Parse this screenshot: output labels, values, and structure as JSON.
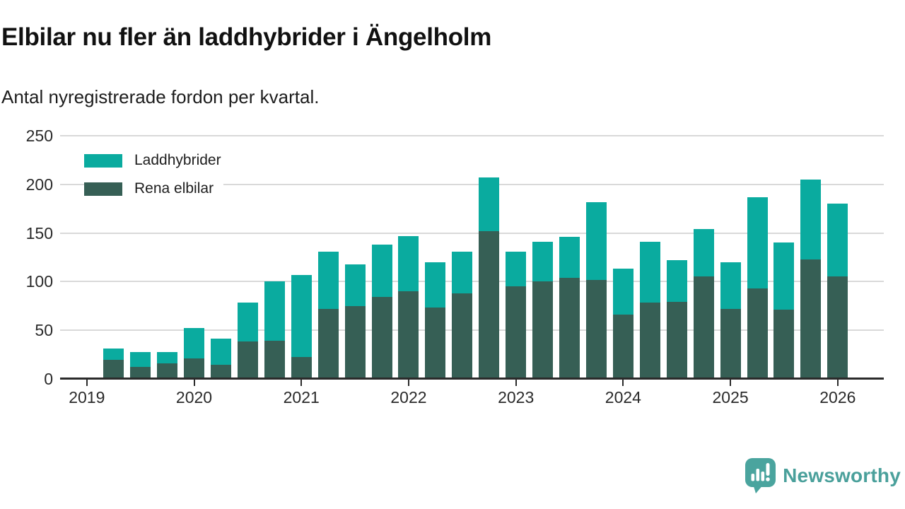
{
  "header": {
    "title": "Elbilar nu fler än laddhybrider i Ängelholm",
    "subtitle": "Antal nyregistrerade fordon per kvartal."
  },
  "legend": {
    "items": [
      {
        "label": "Laddhybrider",
        "color": "#0aab9f"
      },
      {
        "label": "Rena elbilar",
        "color": "#365f55"
      }
    ]
  },
  "footer": {
    "brand": "Newsworthy",
    "logo_icon": "speech-bubble-bar-chart-icon",
    "brand_color": "#4AA09B"
  },
  "colors": {
    "laddhybrider": "#0aab9f",
    "rena_elbilar": "#365f55",
    "gridline": "#d9d9d9",
    "axis": "#2b2b2b",
    "text": "#2a2a2a"
  },
  "chart_data": {
    "type": "bar",
    "stacked": true,
    "title": "Elbilar nu fler än laddhybrider i Ängelholm",
    "subtitle": "Antal nyregistrerade fordon per kvartal.",
    "xlabel": "",
    "ylabel": "",
    "ylim": [
      0,
      250
    ],
    "y_ticks": [
      0,
      50,
      100,
      150,
      200,
      250
    ],
    "x_tick_labels": [
      "2019",
      "2020",
      "2021",
      "2022",
      "2023",
      "2024",
      "2025",
      "2026"
    ],
    "grid": true,
    "legend_position": "top-left-inside",
    "categories": [
      "2019 Q2",
      "2019 Q3",
      "2019 Q4",
      "2020 Q1",
      "2020 Q2",
      "2020 Q3",
      "2020 Q4",
      "2021 Q1",
      "2021 Q2",
      "2021 Q3",
      "2021 Q4",
      "2022 Q1",
      "2022 Q2",
      "2022 Q3",
      "2022 Q4",
      "2023 Q1",
      "2023 Q2",
      "2023 Q3",
      "2023 Q4",
      "2024 Q1",
      "2024 Q2",
      "2024 Q3",
      "2024 Q4",
      "2025 Q1",
      "2025 Q2",
      "2025 Q3",
      "2025 Q4",
      "2026 Q1"
    ],
    "series": [
      {
        "name": "Rena elbilar",
        "color": "#365f55",
        "values": [
          19,
          12,
          16,
          21,
          14,
          38,
          39,
          22,
          72,
          75,
          84,
          90,
          73,
          88,
          152,
          95,
          100,
          104,
          102,
          66,
          78,
          79,
          105,
          72,
          93,
          71,
          123,
          105
        ]
      },
      {
        "name": "Laddhybrider",
        "color": "#0aab9f",
        "values": [
          12,
          15,
          11,
          31,
          27,
          40,
          61,
          85,
          59,
          43,
          54,
          57,
          47,
          43,
          55,
          36,
          41,
          42,
          80,
          47,
          63,
          43,
          49,
          48,
          94,
          69,
          82,
          75
        ]
      }
    ]
  }
}
